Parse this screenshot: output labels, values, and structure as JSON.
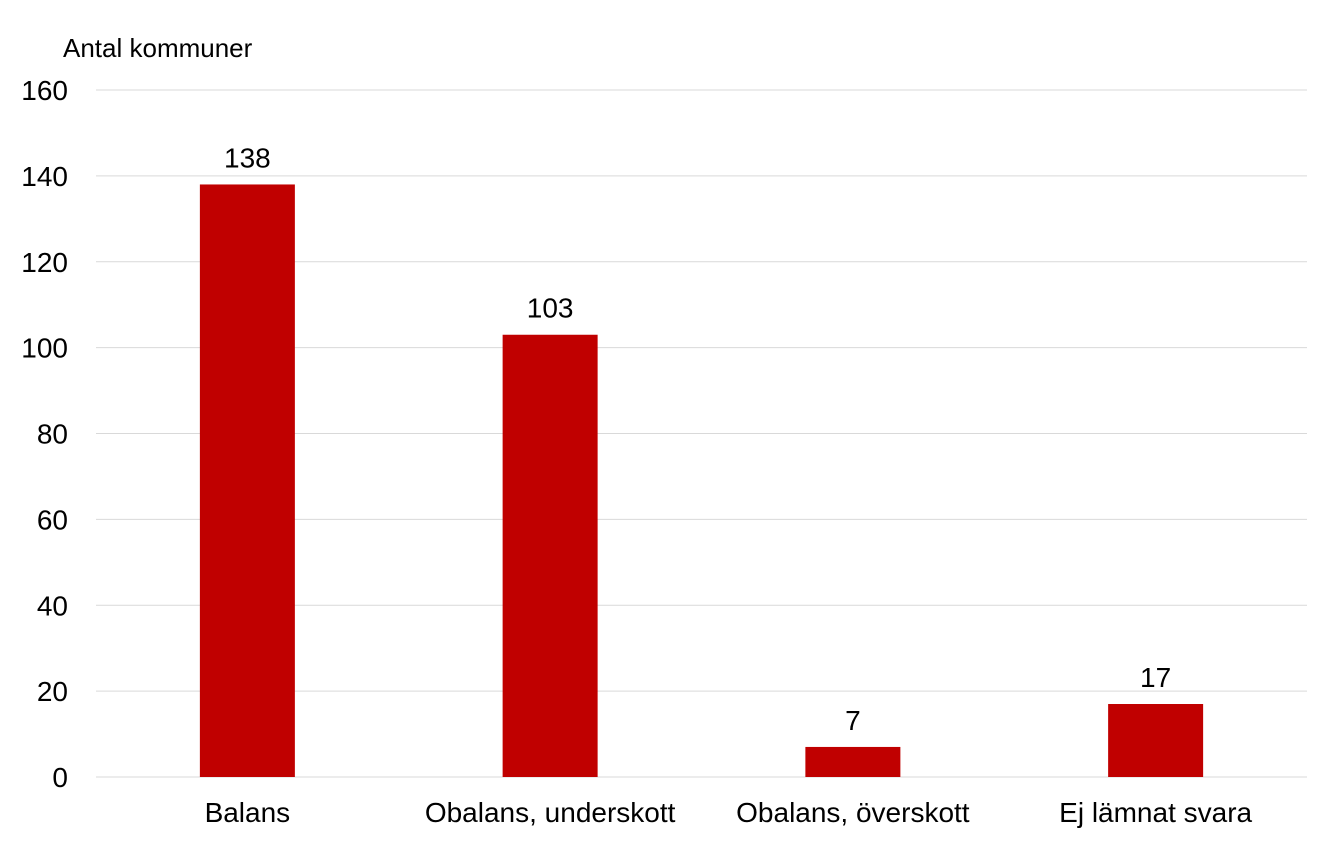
{
  "chart_data": {
    "type": "bar",
    "ylabel": "Antal kommuner",
    "xlabel": "",
    "title": "",
    "categories": [
      "Balans",
      "Obalans, underskott",
      "Obalans, överskott",
      "Ej lämnat svara"
    ],
    "values": [
      138,
      103,
      7,
      17
    ],
    "data_labels": [
      "138",
      "103",
      "7",
      "17"
    ],
    "ylim": [
      0,
      160
    ],
    "yticks": [
      0,
      20,
      40,
      60,
      80,
      100,
      120,
      140,
      160
    ],
    "grid": true,
    "legend": "none",
    "bar_color": "#c00000"
  }
}
